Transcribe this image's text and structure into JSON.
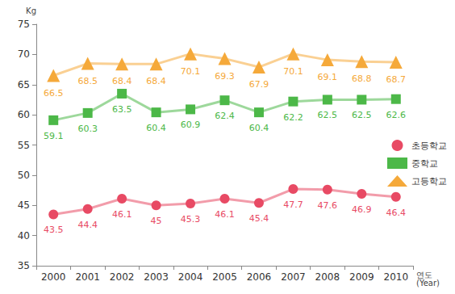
{
  "chart_data": {
    "type": "line",
    "y_label": "Kg",
    "x_label": "연도\n(Year)",
    "categories": [
      "2000",
      "2001",
      "2002",
      "2003",
      "2004",
      "2005",
      "2006",
      "2007",
      "2008",
      "2009",
      "2010"
    ],
    "series": [
      {
        "name": "초등학교",
        "color": "#e84a64",
        "marker": "circle",
        "values": [
          43.5,
          44.4,
          46.1,
          45,
          45.3,
          46.1,
          45.4,
          47.7,
          47.6,
          46.9,
          46.4
        ]
      },
      {
        "name": "중학교",
        "color": "#4cb848",
        "marker": "rect",
        "values": [
          59.1,
          60.3,
          63.5,
          60.4,
          60.9,
          62.4,
          60.4,
          62.2,
          62.5,
          62.5,
          62.6
        ]
      },
      {
        "name": "고등학교",
        "color": "#f5a93a",
        "marker": "triangle",
        "values": [
          66.5,
          68.5,
          68.4,
          68.4,
          70.1,
          69.3,
          67.9,
          70.1,
          69.1,
          68.8,
          68.7
        ]
      }
    ],
    "ylim": [
      35,
      75
    ],
    "yticks": [
      35,
      40,
      45,
      50,
      55,
      60,
      65,
      70,
      75
    ],
    "grid": false,
    "legend": "right",
    "data_labels": true
  }
}
